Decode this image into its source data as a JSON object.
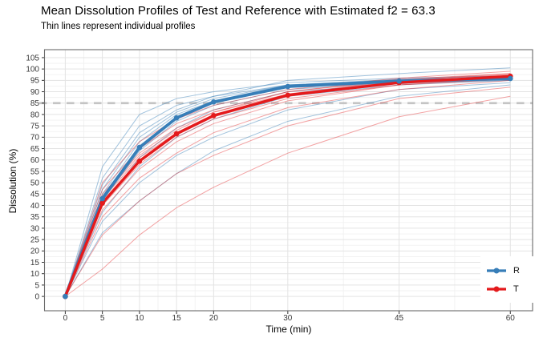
{
  "chart_data": {
    "type": "line",
    "title": "Mean Dissolution Profiles of Test and Reference with Estimated f2 = 63.3",
    "subtitle": "Thin lines represent individual profiles",
    "xlabel": "Time (min)",
    "ylabel": "Dissolution (%)",
    "f2": 63.3,
    "x": [
      0,
      5,
      10,
      15,
      20,
      30,
      45,
      60
    ],
    "x_tick_labels": [
      "0",
      "5",
      "10",
      "15",
      "20",
      "30",
      "45",
      "60"
    ],
    "x_minor": [
      2.5,
      7.5,
      12.5,
      17.5,
      25,
      37.5,
      52.5
    ],
    "y_ticks": [
      0,
      5,
      10,
      15,
      20,
      25,
      30,
      35,
      40,
      45,
      50,
      55,
      60,
      65,
      70,
      75,
      80,
      85,
      90,
      95,
      100,
      105
    ],
    "xlim": [
      -2.8,
      63.0
    ],
    "ylim": [
      -6.3,
      108.5
    ],
    "grid": true,
    "reference_line": {
      "y": 85,
      "style": "dashed"
    },
    "series": [
      {
        "name": "R",
        "color": "#377eb8",
        "mean": [
          0,
          43,
          65.5,
          78.5,
          85.5,
          92.3,
          94.7,
          95.8
        ],
        "individuals": [
          [
            0,
            57,
            80,
            87,
            90,
            94,
            96,
            97
          ],
          [
            0,
            52,
            75,
            84,
            88,
            93,
            95,
            96.5
          ],
          [
            0,
            49,
            72,
            82,
            88,
            95,
            98,
            100.5
          ],
          [
            0,
            47,
            70,
            81,
            87,
            93,
            95.5,
            97
          ],
          [
            0,
            45,
            68,
            80,
            86,
            93,
            95,
            96
          ],
          [
            0,
            44,
            66,
            79,
            86,
            92,
            94.5,
            95.5
          ],
          [
            0,
            43,
            65,
            78,
            85,
            92,
            95,
            96
          ],
          [
            0,
            42,
            64,
            77,
            84,
            91,
            94,
            95
          ],
          [
            0,
            40,
            61,
            74,
            82,
            90,
            93.5,
            95.5
          ],
          [
            0,
            37,
            57,
            70,
            78,
            88,
            93,
            95
          ],
          [
            0,
            33,
            50,
            62,
            70,
            82,
            91,
            94
          ],
          [
            0,
            28,
            42,
            54,
            64,
            77,
            88,
            93
          ]
        ]
      },
      {
        "name": "T",
        "color": "#e41a1c",
        "mean": [
          0,
          41,
          59.5,
          71.5,
          79.5,
          88.5,
          94,
          96.8
        ],
        "individuals": [
          [
            0,
            50,
            68,
            78,
            84,
            91,
            96,
            99
          ],
          [
            0,
            47,
            65,
            76,
            82,
            90,
            95.5,
            98
          ],
          [
            0,
            45,
            63,
            74,
            81,
            90,
            95,
            98
          ],
          [
            0,
            44,
            62,
            73,
            81,
            89,
            95,
            97.5
          ],
          [
            0,
            43,
            61,
            72,
            80,
            89,
            94.5,
            97
          ],
          [
            0,
            42,
            60,
            72,
            80,
            88,
            94,
            97
          ],
          [
            0,
            41,
            59,
            71,
            79,
            88,
            94,
            96.5
          ],
          [
            0,
            40,
            58,
            70,
            78,
            87,
            93,
            96
          ],
          [
            0,
            38,
            56,
            68,
            76,
            86,
            93,
            95.5
          ],
          [
            0,
            35,
            52,
            63,
            72,
            83,
            91,
            95
          ],
          [
            0,
            27,
            42,
            54,
            62,
            75,
            87,
            92
          ],
          [
            0,
            12,
            27,
            39,
            48,
            63,
            79,
            88
          ]
        ]
      }
    ],
    "legend": {
      "position": "inside-bottom-right",
      "items": [
        {
          "label": "R",
          "color": "#377eb8"
        },
        {
          "label": "T",
          "color": "#e41a1c"
        }
      ]
    }
  },
  "colors": {
    "reference_line": "#c4c4c4",
    "grid_major": "#e3e3e3",
    "grid_minor": "#f1f1f1",
    "panel_border": "#6a6a6a",
    "tick_mark": "#333333",
    "tick_label": "#383838",
    "text": "#000000"
  }
}
